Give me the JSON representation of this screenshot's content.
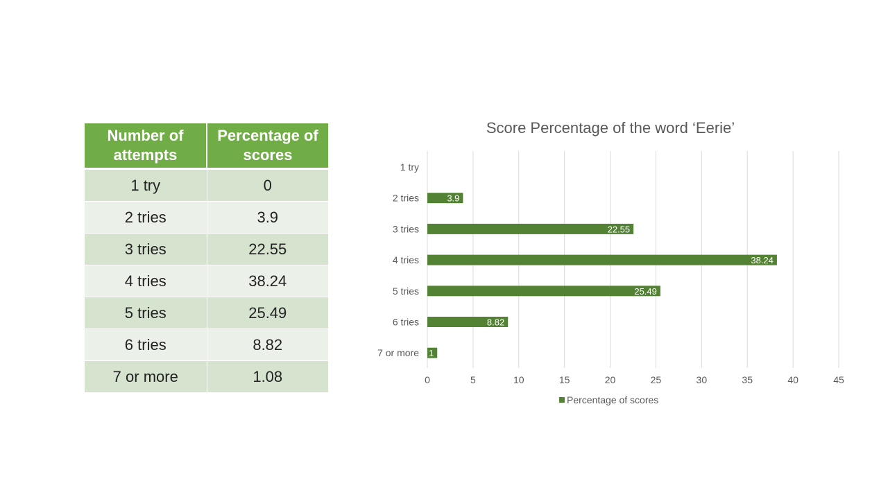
{
  "table": {
    "headers": [
      "Number of attempts",
      "Percentage of scores"
    ],
    "rows": [
      [
        "1 try",
        "0"
      ],
      [
        "2 tries",
        "3.9"
      ],
      [
        "3 tries",
        "22.55"
      ],
      [
        "4 tries",
        "38.24"
      ],
      [
        "5 tries",
        "25.49"
      ],
      [
        "6 tries",
        "8.82"
      ],
      [
        "7 or more",
        "1.08"
      ]
    ]
  },
  "colors": {
    "bar": "#548235",
    "header": "#70ad47",
    "row_odd": "#d5e3cf",
    "row_even": "#ebf1e9",
    "grid": "#d9d9d9"
  },
  "chart_data": {
    "type": "bar",
    "orientation": "horizontal",
    "title": "Score Percentage of the word ‘Eerie’",
    "categories": [
      "1 try",
      "2 tries",
      "3 tries",
      "4 tries",
      "5 tries",
      "6 tries",
      "7 or more"
    ],
    "series": [
      {
        "name": "Percentage of scores",
        "values": [
          0,
          3.9,
          22.55,
          38.24,
          25.49,
          8.82,
          1.08
        ],
        "labels": [
          "",
          "3.9",
          "22.55",
          "38.24",
          "25.49",
          "8.82",
          "1"
        ]
      }
    ],
    "xlim": [
      0,
      45
    ],
    "xticks": [
      0,
      5,
      10,
      15,
      20,
      25,
      30,
      35,
      40,
      45
    ],
    "grid": true,
    "legend": "bottom"
  }
}
